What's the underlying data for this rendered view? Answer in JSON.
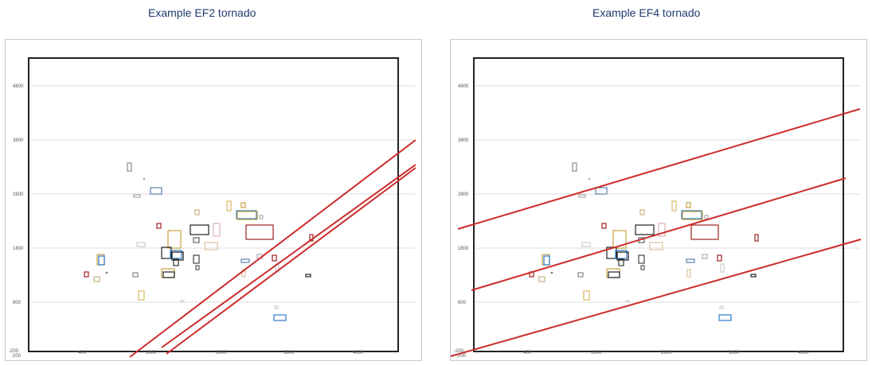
{
  "titles": {
    "left": "Example EF2 tornado",
    "right": "Example EF4 tornado"
  },
  "axes": {
    "x_ticks": [
      "400",
      "1800",
      "2800",
      "3800",
      "4800"
    ],
    "y_ticks": [
      "4800",
      "3800",
      "2800",
      "1800",
      "800"
    ],
    "origin_labels": [
      "-200",
      "-200"
    ]
  },
  "colors": {
    "path_line": "#cc2b2b",
    "frame": "#222222",
    "grid": "#d0d0d0"
  }
}
